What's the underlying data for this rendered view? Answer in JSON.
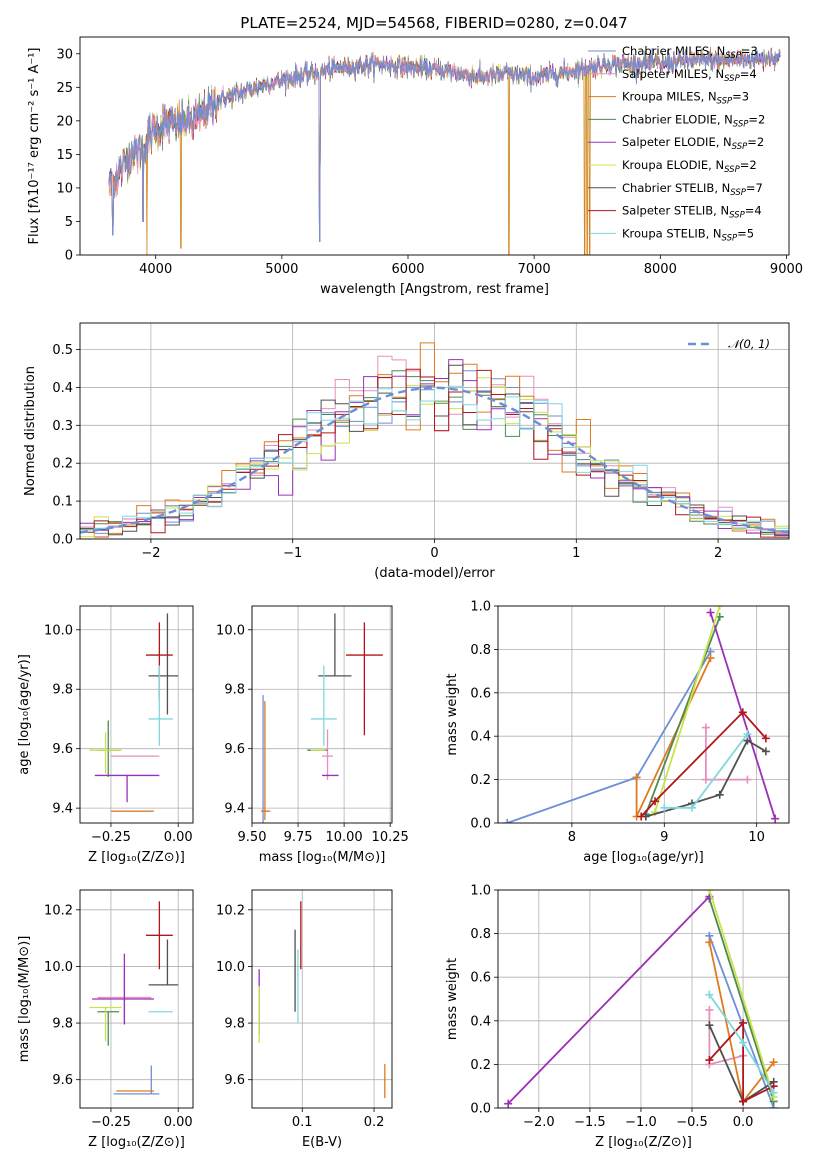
{
  "figure": {
    "title": "PLATE=2524, MJD=54568, FIBERID=0280, z=0.047"
  },
  "chart_data": [
    {
      "id": "spectrum",
      "type": "line",
      "xlabel": "wavelength [Angstrom, rest frame]",
      "ylabel": "Flux [fλ10⁻¹⁷ erg cm⁻² s⁻¹ A⁻¹]",
      "xlim": [
        3400,
        9020
      ],
      "ylim": [
        0,
        32.5
      ],
      "xticks": [
        4000,
        5000,
        6000,
        7000,
        8000,
        9000
      ],
      "yticks": [
        0,
        5,
        10,
        15,
        20,
        25,
        30
      ],
      "grid": false,
      "legend_position": "top-right",
      "data_range": [
        3630,
        8950
      ],
      "anchors": [
        [
          3630,
          10.5
        ],
        [
          3700,
          12
        ],
        [
          3800,
          15
        ],
        [
          3900,
          16
        ],
        [
          4000,
          19
        ],
        [
          4100,
          19.5
        ],
        [
          4300,
          20
        ],
        [
          4500,
          23
        ],
        [
          4800,
          25
        ],
        [
          5000,
          26
        ],
        [
          5200,
          27
        ],
        [
          5500,
          28
        ],
        [
          5800,
          28.5
        ],
        [
          6000,
          28
        ],
        [
          6300,
          27.5
        ],
        [
          6563,
          26.5
        ],
        [
          6800,
          27
        ],
        [
          7000,
          26.5
        ],
        [
          7300,
          27.5
        ],
        [
          7600,
          28.5
        ],
        [
          7800,
          28.5
        ],
        [
          8000,
          28.5
        ],
        [
          8200,
          29
        ],
        [
          8500,
          29
        ],
        [
          8700,
          29.2
        ],
        [
          8950,
          29.5
        ]
      ],
      "dips": [
        [
          3660,
          3
        ],
        [
          3900,
          5
        ],
        [
          3930,
          0
        ],
        [
          4200,
          1
        ],
        [
          5300,
          2
        ],
        [
          6800,
          0
        ],
        [
          7400,
          0
        ],
        [
          7420,
          0
        ],
        [
          7440,
          0
        ]
      ],
      "series": [
        {
          "name": "Chabrier MILES, N",
          "sub": "SSP",
          "suffix": "=3",
          "color": "#6e8fd6"
        },
        {
          "name": "Salpeter MILES, N",
          "sub": "SSP",
          "suffix": "=4",
          "color": "#e88fbf"
        },
        {
          "name": "Kroupa MILES, N",
          "sub": "SSP",
          "suffix": "=3",
          "color": "#e07a1f"
        },
        {
          "name": "Chabrier ELODIE, N",
          "sub": "SSP",
          "suffix": "=2",
          "color": "#4f8a55"
        },
        {
          "name": "Salpeter ELODIE, N",
          "sub": "SSP",
          "suffix": "=2",
          "color": "#9b30b8"
        },
        {
          "name": "Kroupa ELODIE, N",
          "sub": "SSP",
          "suffix": "=2",
          "color": "#c9e44a"
        },
        {
          "name": "Chabrier STELIB, N",
          "sub": "SSP",
          "suffix": "=7",
          "color": "#505050"
        },
        {
          "name": "Salpeter STELIB, N",
          "sub": "SSP",
          "suffix": "=4",
          "color": "#b0171c"
        },
        {
          "name": "Kroupa STELIB, N",
          "sub": "SSP",
          "suffix": "=5",
          "color": "#7fd8df"
        }
      ]
    },
    {
      "id": "residuals",
      "type": "histogram",
      "xlabel": "(data-model)/error",
      "ylabel": "Normed distribution",
      "xlim": [
        -2.5,
        2.5
      ],
      "ylim": [
        0,
        0.57
      ],
      "xticks": [
        -2,
        -1,
        0,
        1,
        2
      ],
      "yticks": [
        0.0,
        0.1,
        0.2,
        0.3,
        0.4,
        0.5
      ],
      "grid": true,
      "bin_width": 0.1,
      "legend_position": "top-right",
      "reference_curve": {
        "name": "𝒩(0, 1)",
        "mean": 0,
        "sigma": 1,
        "color": "#6e8fd6",
        "style": "dashed"
      }
    },
    {
      "id": "age-vs-Z",
      "type": "errorbar",
      "xlabel": "Z [log₁₀(Z/Z⊙)]",
      "ylabel": "age  [log₁₀(age/yr)]",
      "xlim": [
        -0.365,
        0.055
      ],
      "ylim": [
        9.35,
        10.08
      ],
      "xticks": [
        -0.25,
        0.0
      ],
      "yticks": [
        9.4,
        9.6,
        9.8,
        10.0
      ],
      "grid": true,
      "points": [
        {
          "x": -0.15,
          "y": 9.39,
          "xerr": [
            0.1,
            0.05
          ],
          "yerr": [
            0.0,
            0.0
          ],
          "color": "#6e8fd6"
        },
        {
          "x": -0.16,
          "y": 9.575,
          "xerr": [
            0.09,
            0.09
          ],
          "yerr": [
            0.0,
            0.0
          ],
          "color": "#e88fbf"
        },
        {
          "x": -0.17,
          "y": 9.39,
          "xerr": [
            0.08,
            0.08
          ],
          "yerr": [
            0.0,
            0.0
          ],
          "color": "#e07a1f"
        },
        {
          "x": -0.26,
          "y": 9.595,
          "xerr": [
            0.04,
            0.04
          ],
          "yerr": [
            0.09,
            0.1
          ],
          "color": "#4f8a55"
        },
        {
          "x": -0.19,
          "y": 9.51,
          "xerr": [
            0.12,
            0.12
          ],
          "yerr": [
            0.09,
            0.0
          ],
          "color": "#9b30b8"
        },
        {
          "x": -0.27,
          "y": 9.595,
          "xerr": [
            0.06,
            0.06
          ],
          "yerr": [
            0.08,
            0.06
          ],
          "color": "#c9e44a"
        },
        {
          "x": -0.04,
          "y": 9.845,
          "xerr": [
            0.07,
            0.04
          ],
          "yerr": [
            0.13,
            0.21
          ],
          "color": "#505050"
        },
        {
          "x": -0.07,
          "y": 9.915,
          "xerr": [
            0.05,
            0.05
          ],
          "yerr": [
            0.15,
            0.11
          ],
          "color": "#b0171c"
        },
        {
          "x": -0.07,
          "y": 9.7,
          "xerr": [
            0.04,
            0.05
          ],
          "yerr": [
            0.09,
            0.18
          ],
          "color": "#7fd8df"
        }
      ]
    },
    {
      "id": "age-vs-mass",
      "type": "errorbar",
      "xlabel": "mass [log₁₀(M/M⊙)]",
      "ylabel": "",
      "xlim": [
        9.5,
        10.26
      ],
      "ylim": [
        9.35,
        10.08
      ],
      "xticks": [
        9.5,
        9.75,
        10.0,
        10.25
      ],
      "xtick_labels": [
        "9.50",
        "9.75",
        "10.00",
        "10.25"
      ],
      "yticks": [
        9.4,
        9.6,
        9.8,
        10.0
      ],
      "grid": true,
      "points": [
        {
          "x": 9.56,
          "y": 9.39,
          "xerr": [
            0.01,
            0.03
          ],
          "yerr": [
            0.07,
            0.39
          ],
          "color": "#6e8fd6"
        },
        {
          "x": 9.91,
          "y": 9.575,
          "xerr": [
            0.03,
            0.03
          ],
          "yerr": [
            0.08,
            0.09
          ],
          "color": "#e88fbf"
        },
        {
          "x": 9.57,
          "y": 9.39,
          "xerr": [
            0.02,
            0.03
          ],
          "yerr": [
            0.03,
            0.37
          ],
          "color": "#e07a1f"
        },
        {
          "x": 9.86,
          "y": 9.595,
          "xerr": [
            0.06,
            0.05
          ],
          "yerr": [
            0.0,
            0.0
          ],
          "color": "#4f8a55"
        },
        {
          "x": 9.92,
          "y": 9.51,
          "xerr": [
            0.04,
            0.05
          ],
          "yerr": [
            0.0,
            0.0
          ],
          "color": "#9b30b8"
        },
        {
          "x": 9.86,
          "y": 9.595,
          "xerr": [
            0.04,
            0.04
          ],
          "yerr": [
            0.0,
            0.0
          ],
          "color": "#c9e44a"
        },
        {
          "x": 9.95,
          "y": 9.845,
          "xerr": [
            0.09,
            0.09
          ],
          "yerr": [
            0.0,
            0.21
          ],
          "color": "#505050"
        },
        {
          "x": 10.11,
          "y": 9.915,
          "xerr": [
            0.1,
            0.1
          ],
          "yerr": [
            0.27,
            0.11
          ],
          "color": "#b0171c"
        },
        {
          "x": 9.89,
          "y": 9.7,
          "xerr": [
            0.07,
            0.07
          ],
          "yerr": [
            0.09,
            0.18
          ],
          "color": "#7fd8df"
        }
      ]
    },
    {
      "id": "weight-vs-age",
      "type": "line",
      "xlabel": "age  [log₁₀(age/yr)]",
      "ylabel": "mass weight",
      "xlim": [
        7.2,
        10.35
      ],
      "ylim": [
        0,
        1.0
      ],
      "xticks": [
        8,
        9,
        10
      ],
      "yticks": [
        0.0,
        0.2,
        0.4,
        0.6,
        0.8,
        1.0
      ],
      "grid": true,
      "series": [
        {
          "color": "#6e8fd6",
          "points": [
            [
              7.3,
              0.0
            ],
            [
              8.7,
              0.21
            ],
            [
              9.5,
              0.79
            ]
          ]
        },
        {
          "color": "#e88fbf",
          "points": [
            [
              9.45,
              0.44
            ],
            [
              9.45,
              0.2
            ],
            [
              9.9,
              0.2
            ]
          ]
        },
        {
          "color": "#e07a1f",
          "points": [
            [
              8.7,
              0.21
            ],
            [
              8.7,
              0.03
            ],
            [
              9.5,
              0.76
            ]
          ]
        },
        {
          "color": "#4f8a55",
          "points": [
            [
              8.8,
              0.04
            ],
            [
              9.6,
              0.95
            ]
          ]
        },
        {
          "color": "#9b30b8",
          "points": [
            [
              9.5,
              0.97
            ],
            [
              10.2,
              0.02
            ]
          ]
        },
        {
          "color": "#c9e44a",
          "points": [
            [
              8.9,
              0.05
            ],
            [
              9.6,
              1.0
            ]
          ]
        },
        {
          "color": "#505050",
          "points": [
            [
              8.8,
              0.03
            ],
            [
              9.3,
              0.09
            ],
            [
              9.6,
              0.13
            ],
            [
              9.9,
              0.38
            ],
            [
              10.1,
              0.33
            ]
          ]
        },
        {
          "color": "#b0171c",
          "points": [
            [
              8.75,
              0.03
            ],
            [
              8.9,
              0.1
            ],
            [
              9.85,
              0.51
            ],
            [
              10.1,
              0.39
            ]
          ]
        },
        {
          "color": "#7fd8df",
          "points": [
            [
              9.0,
              0.07
            ],
            [
              9.3,
              0.07
            ],
            [
              9.9,
              0.41
            ]
          ]
        }
      ]
    },
    {
      "id": "mass-vs-Z",
      "type": "errorbar",
      "xlabel": "Z [log₁₀(Z/Z⊙)]",
      "ylabel": "mass [log₁₀(M/M⊙)]",
      "xlim": [
        -0.365,
        0.055
      ],
      "ylim": [
        9.5,
        10.27
      ],
      "xticks": [
        -0.25,
        0.0
      ],
      "yticks": [
        9.6,
        9.8,
        10.0,
        10.2
      ],
      "grid": true,
      "points": [
        {
          "x": -0.1,
          "y": 9.55,
          "xerr": [
            0.14,
            0.03
          ],
          "yerr": [
            0.0,
            0.1
          ],
          "color": "#6e8fd6"
        },
        {
          "x": -0.2,
          "y": 9.89,
          "xerr": [
            0.1,
            0.1
          ],
          "yerr": [
            0.09,
            0.1
          ],
          "color": "#e88fbf"
        },
        {
          "x": -0.14,
          "y": 9.56,
          "xerr": [
            0.09,
            0.05
          ],
          "yerr": [
            0.0,
            0.0
          ],
          "color": "#e07a1f"
        },
        {
          "x": -0.26,
          "y": 9.84,
          "xerr": [
            0.04,
            0.04
          ],
          "yerr": [
            0.12,
            0.0
          ],
          "color": "#4f8a55"
        },
        {
          "x": -0.2,
          "y": 9.885,
          "xerr": [
            0.12,
            0.11
          ],
          "yerr": [
            0.09,
            0.16
          ],
          "color": "#9b30b8"
        },
        {
          "x": -0.27,
          "y": 9.855,
          "xerr": [
            0.06,
            0.06
          ],
          "yerr": [
            0.12,
            0.0
          ],
          "color": "#c9e44a"
        },
        {
          "x": -0.04,
          "y": 9.935,
          "xerr": [
            0.07,
            0.04
          ],
          "yerr": [
            0.0,
            0.16
          ],
          "color": "#505050"
        },
        {
          "x": -0.07,
          "y": 10.11,
          "xerr": [
            0.05,
            0.05
          ],
          "yerr": [
            0.12,
            0.12
          ],
          "color": "#b0171c"
        },
        {
          "x": -0.07,
          "y": 9.84,
          "xerr": [
            0.04,
            0.05
          ],
          "yerr": [
            0.0,
            0.0
          ],
          "color": "#7fd8df"
        }
      ]
    },
    {
      "id": "mass-vs-EBV",
      "type": "errorbar",
      "xlabel": "E(B-V)",
      "ylabel": "",
      "xlim": [
        0.03,
        0.225
      ],
      "ylim": [
        9.5,
        10.27
      ],
      "xticks": [
        0.1,
        0.2
      ],
      "yticks": [
        9.6,
        9.8,
        10.0,
        10.2
      ],
      "grid": true,
      "points": [
        {
          "x": 0.215,
          "y": 9.595,
          "xerr": [
            0,
            0
          ],
          "yerr": [
            0.06,
            0.06
          ],
          "color": "#e07a1f"
        },
        {
          "x": 0.04,
          "y": 9.85,
          "xerr": [
            0,
            0
          ],
          "yerr": [
            0.09,
            0.14
          ],
          "color": "#9b30b8"
        },
        {
          "x": 0.04,
          "y": 9.85,
          "xerr": [
            0,
            0
          ],
          "yerr": [
            0.12,
            0.08
          ],
          "color": "#c9e44a"
        },
        {
          "x": 0.09,
          "y": 10.0,
          "xerr": [
            0,
            0
          ],
          "yerr": [
            0.16,
            0.13
          ],
          "color": "#505050"
        },
        {
          "x": 0.098,
          "y": 10.1,
          "xerr": [
            0,
            0
          ],
          "yerr": [
            0.11,
            0.13
          ],
          "color": "#b0171c"
        },
        {
          "x": 0.094,
          "y": 9.93,
          "xerr": [
            0,
            0
          ],
          "yerr": [
            0.13,
            0.13
          ],
          "color": "#7fd8df"
        }
      ]
    },
    {
      "id": "weight-vs-Z",
      "type": "line",
      "xlabel": "Z [log₁₀(Z/Z⊙)]",
      "ylabel": "mass weight",
      "xlim": [
        -2.4,
        0.45
      ],
      "ylim": [
        0,
        1.0
      ],
      "xticks": [
        -2.0,
        -1.5,
        -1.0,
        -0.5,
        0.0
      ],
      "yticks": [
        0.0,
        0.2,
        0.4,
        0.6,
        0.8,
        1.0
      ],
      "grid": true,
      "series": [
        {
          "color": "#6e8fd6",
          "points": [
            [
              -0.33,
              0.79
            ],
            [
              0.3,
              0.0
            ]
          ]
        },
        {
          "color": "#e88fbf",
          "points": [
            [
              -0.33,
              0.45
            ],
            [
              -0.33,
              0.2
            ],
            [
              0.0,
              0.24
            ]
          ]
        },
        {
          "color": "#e07a1f",
          "points": [
            [
              -0.33,
              0.76
            ],
            [
              0.0,
              0.03
            ],
            [
              0.3,
              0.21
            ]
          ]
        },
        {
          "color": "#4f8a55",
          "points": [
            [
              -0.33,
              0.96
            ],
            [
              0.3,
              0.03
            ]
          ]
        },
        {
          "color": "#9b30b8",
          "points": [
            [
              -2.3,
              0.02
            ],
            [
              -0.33,
              0.97
            ]
          ]
        },
        {
          "color": "#c9e44a",
          "points": [
            [
              -0.33,
              1.0
            ],
            [
              0.3,
              0.05
            ]
          ]
        },
        {
          "color": "#505050",
          "points": [
            [
              -0.33,
              0.38
            ],
            [
              0.0,
              0.03
            ],
            [
              0.3,
              0.12
            ]
          ]
        },
        {
          "color": "#b0171c",
          "points": [
            [
              -0.33,
              0.22
            ],
            [
              0.0,
              0.39
            ],
            [
              0.0,
              0.03
            ],
            [
              0.3,
              0.1
            ]
          ]
        },
        {
          "color": "#7fd8df",
          "points": [
            [
              -0.33,
              0.52
            ],
            [
              0.0,
              0.3
            ],
            [
              0.3,
              0.07
            ]
          ]
        }
      ]
    }
  ]
}
